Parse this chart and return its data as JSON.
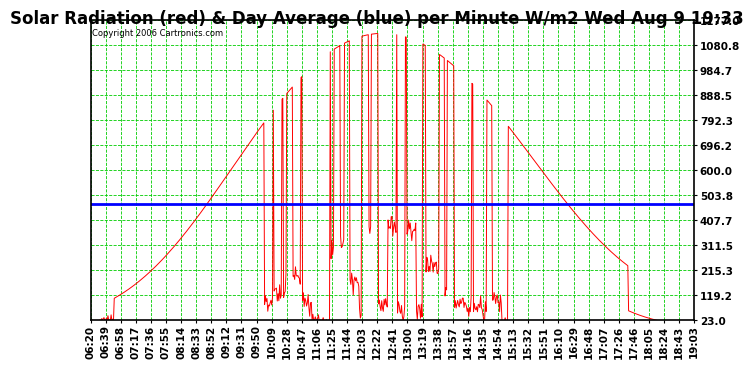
{
  "title": "Solar Radiation (red) & Day Average (blue) per Minute W/m2 Wed Aug 9 19:33",
  "copyright": "Copyright 2006 Cartronics.com",
  "bg_color": "#ffffff",
  "plot_bg_color": "#ffffff",
  "grid_color": "#00cc00",
  "line_color_red": "#ff0000",
  "line_color_blue": "#0000ff",
  "yticks": [
    23.0,
    119.2,
    215.3,
    311.5,
    407.7,
    503.8,
    600.0,
    696.2,
    792.3,
    888.5,
    984.7,
    1080.8,
    1177.0
  ],
  "xtick_labels": [
    "06:20",
    "06:39",
    "06:58",
    "07:17",
    "07:36",
    "07:55",
    "08:14",
    "08:33",
    "08:52",
    "09:12",
    "09:31",
    "09:50",
    "10:09",
    "10:28",
    "10:47",
    "11:06",
    "11:25",
    "11:44",
    "12:03",
    "12:22",
    "12:41",
    "13:00",
    "13:19",
    "13:38",
    "13:57",
    "14:16",
    "14:35",
    "14:54",
    "15:13",
    "15:32",
    "15:51",
    "16:10",
    "16:29",
    "16:48",
    "17:07",
    "17:26",
    "17:46",
    "18:05",
    "18:24",
    "18:43",
    "19:03"
  ],
  "day_average": 470.0,
  "ymin": 23.0,
  "ymax": 1177.0,
  "title_fontsize": 12,
  "axis_label_fontsize": 7.5
}
